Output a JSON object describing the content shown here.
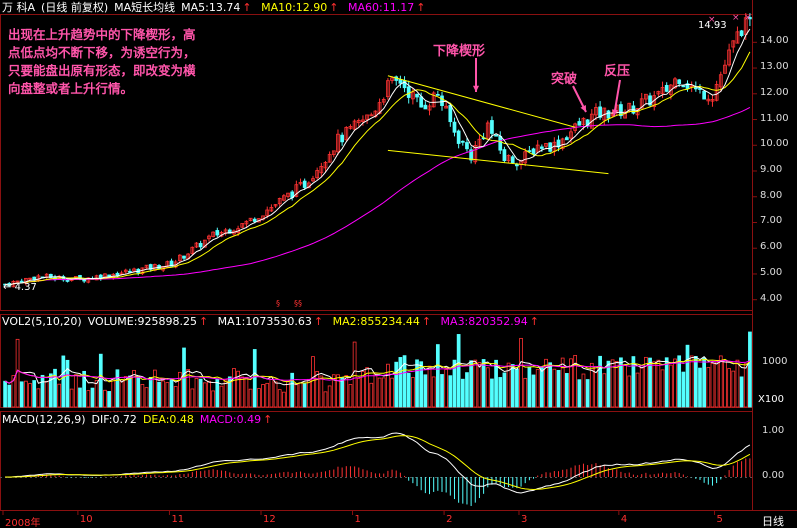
{
  "header": {
    "name_prefix": "万 科A",
    "period": "(日线 前复权)",
    "ma_title": "MA短长均线",
    "ma5": "MA5:13.74",
    "ma10": "MA10:12.90",
    "ma60": "MA60:11.17"
  },
  "vol_header": {
    "title": "VOL2(5,10,20)",
    "volume": "VOLUME:925898.25",
    "ma1": "MA1:1073530.63",
    "ma2": "MA2:855234.44",
    "ma3": "MA3:820352.94"
  },
  "macd_header": {
    "title": "MACD(12,26,9)",
    "dif": "DIF:0.72",
    "dea": "DEA:0.48",
    "macd": "MACD:0.49"
  },
  "annotations": {
    "note_lines": [
      "出现在上升趋势中的下降楔形，高",
      "点低点均不断下移，为诱空行为，",
      "只要能盘出原有形态，即改变为横",
      "向盘整或者上升行情。"
    ],
    "wedge_label": "下降楔形",
    "breakout_label": "突破",
    "pullback_label": "反压",
    "high_label": "14.93",
    "low_label": "4.37",
    "bottom_tab": "日线",
    "vol_unit": "X100"
  },
  "colors": {
    "up": "#ff3232",
    "down": "#54ffff",
    "ma5": "#ffffff",
    "ma10": "#ffff00",
    "ma60": "#ff00ff",
    "annotation": "#ff55aa",
    "grid": "#8a1010"
  },
  "chart_data": {
    "type": "candlestick",
    "price_axis_ticks": [
      "14.00",
      "13.00",
      "12.00",
      "11.00",
      "10.00",
      "9.00",
      "8.00",
      "7.00",
      "6.00",
      "5.00",
      "4.00"
    ],
    "price_range": [
      3.6,
      15.1
    ],
    "volume_axis_ticks": [
      "1000"
    ],
    "macd_axis_ticks": [
      "1.00",
      "0.00"
    ],
    "x_labels": [
      {
        "label": "2008年",
        "bar": 0
      },
      {
        "label": "10",
        "bar": 18
      },
      {
        "label": "11",
        "bar": 40
      },
      {
        "label": "12",
        "bar": 62
      },
      {
        "label": "1",
        "bar": 84
      },
      {
        "label": "2",
        "bar": 106
      },
      {
        "label": "3",
        "bar": 124
      },
      {
        "label": "4",
        "bar": 148
      },
      {
        "label": "5",
        "bar": 171
      }
    ],
    "series_names": [
      "MA5",
      "MA10",
      "MA60"
    ],
    "close_anchors": [
      [
        0,
        4.6
      ],
      [
        8,
        4.9
      ],
      [
        18,
        4.8
      ],
      [
        30,
        5.1
      ],
      [
        40,
        5.4
      ],
      [
        50,
        6.5
      ],
      [
        58,
        7.0
      ],
      [
        64,
        7.6
      ],
      [
        72,
        8.5
      ],
      [
        80,
        10.2
      ],
      [
        88,
        11.2
      ],
      [
        92,
        12.3
      ],
      [
        95,
        12.5
      ],
      [
        100,
        11.5
      ],
      [
        104,
        12.0
      ],
      [
        108,
        10.5
      ],
      [
        112,
        9.6
      ],
      [
        116,
        10.8
      ],
      [
        120,
        9.5
      ],
      [
        124,
        9.4
      ],
      [
        128,
        10.0
      ],
      [
        132,
        10.0
      ],
      [
        138,
        10.8
      ],
      [
        142,
        11.2
      ],
      [
        150,
        11.4
      ],
      [
        158,
        12.0
      ],
      [
        162,
        12.7
      ],
      [
        166,
        12.1
      ],
      [
        170,
        12.0
      ],
      [
        174,
        13.5
      ],
      [
        177,
        14.6
      ]
    ],
    "highest": 14.93,
    "lowest": 4.37,
    "wedge": {
      "upper": [
        [
          92,
          12.7
        ],
        [
          137,
          10.7
        ]
      ],
      "lower": [
        [
          92,
          9.8
        ],
        [
          145,
          8.9
        ]
      ]
    }
  }
}
